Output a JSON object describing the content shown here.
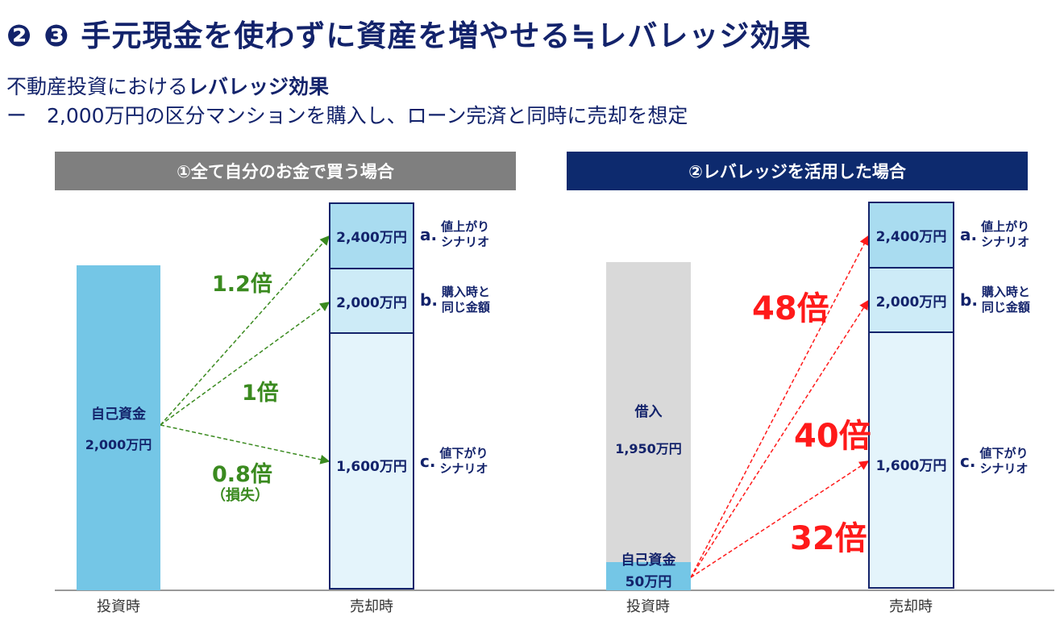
{
  "title": "❷ ❸ 手元現金を使わずに資産を増やせる≒レバレッジ効果",
  "subtitle": {
    "line1_normal": "不動産投資における",
    "line1_bold": "レバレッジ効果",
    "line2": "ー　2,000万円の区分マンションを購入し、ローン完済と同時に売却を想定"
  },
  "left": {
    "header": "①全て自分のお金で買う場合",
    "bar_label": "自己資金",
    "bar_value": "2,000万円",
    "mult_a": "1.2倍",
    "mult_b": "1倍",
    "mult_c": "0.8倍",
    "mult_c_note": "（損失）",
    "x_label_buy": "投資時",
    "x_label_sell": "売却時"
  },
  "right": {
    "header": "②レバレッジを活用した場合",
    "loan_label": "借入",
    "loan_value": "1,950万円",
    "own_label": "自己資金",
    "own_value": "50万円",
    "mult_a": "48倍",
    "mult_b": "40倍",
    "mult_c": "32倍",
    "x_label_buy": "投資時",
    "x_label_sell": "売却時"
  },
  "scenarios": [
    {
      "letter": "a.",
      "value": "2,400万円",
      "line1": "値上がり",
      "line2": "シナリオ"
    },
    {
      "letter": "b.",
      "value": "2,000万円",
      "line1": "購入時と",
      "line2": "同じ金額"
    },
    {
      "letter": "c.",
      "value": "1,600万円",
      "line1": "値下がり",
      "line2": "シナリオ"
    }
  ],
  "colors": {
    "navy": "#13236b",
    "gray_header": "#7f7f7f",
    "green": "#3a8a1f",
    "red": "#ff1a1a",
    "own_funds": "#74c6e6",
    "loan": "#d9d9d9"
  }
}
